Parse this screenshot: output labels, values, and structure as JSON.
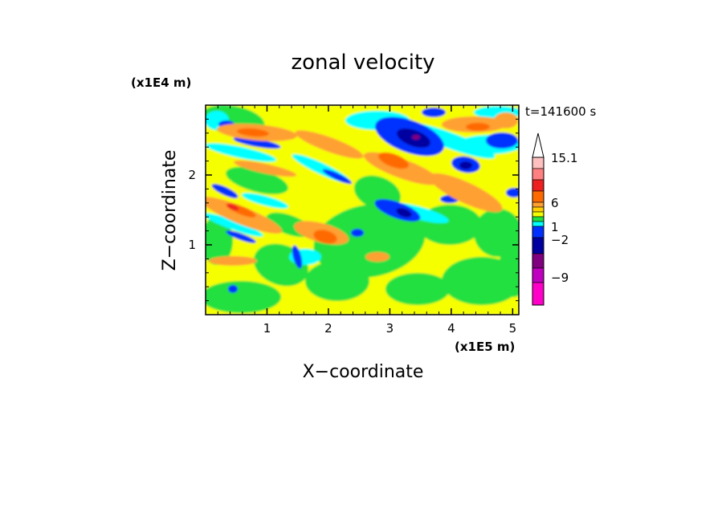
{
  "chart_data": {
    "type": "heatmap",
    "title": "zonal velocity",
    "xlabel": "X−coordinate",
    "ylabel": "Z−coordinate",
    "x_unit": "(x1E5 m)",
    "y_unit": "(x1E4 m)",
    "time_label": "t=141600 s",
    "x_ticks": [
      "1",
      "2",
      "3",
      "4",
      "5"
    ],
    "y_ticks": [
      "1",
      "2"
    ],
    "xlim": [
      0,
      5.1
    ],
    "ylim": [
      0,
      3
    ],
    "colorbar": {
      "labels": [
        "15.1",
        "6",
        "1",
        "−2",
        "−9"
      ],
      "colors_top_to_bottom": [
        "#ffc0c0",
        "#ff8080",
        "#ee2020",
        "#ff6a00",
        "#ffa030",
        "#ffd000",
        "#f6ff00",
        "#20e040",
        "#00ffff",
        "#0030ff",
        "#0000a0",
        "#800080",
        "#c000c0",
        "#ff00c8"
      ]
    },
    "field_colors": {
      "yellow": "#f6ff00",
      "green": "#20e040",
      "cyan": "#00ffff",
      "blue": "#0030ff",
      "navy": "#0000a0",
      "orange": "#ffa030",
      "dark_orange": "#ff6a00",
      "red": "#ee2020",
      "purple": "#800080"
    }
  }
}
